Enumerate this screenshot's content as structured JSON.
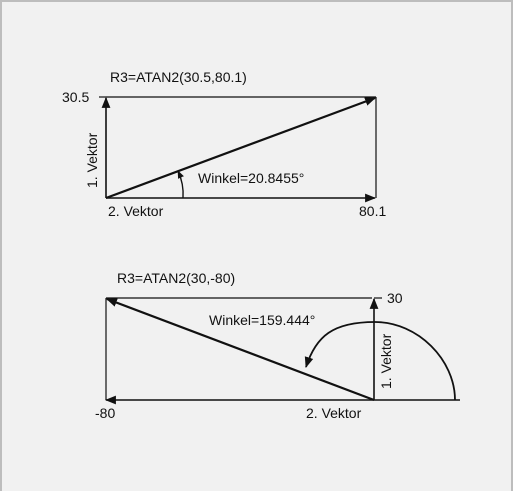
{
  "diagram1": {
    "formula": "R3=ATAN2(30.5,80.1)",
    "y_value": "30.5",
    "x_value": "80.1",
    "vertical_label": "1. Vektor",
    "horizontal_label": "2. Vektor",
    "angle_label": "Winkel=20.8455°"
  },
  "diagram2": {
    "formula": "R3=ATAN2(30,-80)",
    "y_value": "30",
    "x_value": "-80",
    "vertical_label": "1. Vektor",
    "horizontal_label": "2. Vektor",
    "angle_label": "Winkel=159.444°"
  }
}
